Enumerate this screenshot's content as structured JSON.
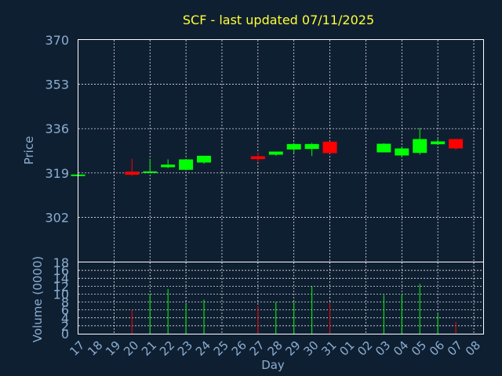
{
  "chart_data": [
    {
      "type": "candlestick",
      "title": "SCF - last updated 07/11/2025",
      "ylabel": "Price",
      "yticks": [
        "370",
        "353",
        "336",
        "319",
        "302"
      ],
      "ylim": [
        285,
        370
      ],
      "grid": true,
      "colors": {
        "up": "#00ff00",
        "down": "#ff0000",
        "background": "#0f1f32",
        "text": "#8aaed0",
        "title": "#ffff33"
      },
      "categories": [
        "17",
        "18",
        "19",
        "20",
        "21",
        "22",
        "23",
        "24",
        "25",
        "26",
        "27",
        "28",
        "29",
        "30",
        "31",
        "01",
        "02",
        "03",
        "04",
        "05",
        "06",
        "07",
        "08"
      ],
      "candles": [
        {
          "x": "17",
          "open": 318.3,
          "high": 318.5,
          "low": 318.1,
          "close": 318.4
        },
        {
          "x": "20",
          "open": 319.5,
          "high": 324.4,
          "low": 318.0,
          "close": 318.3
        },
        {
          "x": "21",
          "open": 319.3,
          "high": 324.4,
          "low": 319.0,
          "close": 319.6
        },
        {
          "x": "22",
          "open": 321.2,
          "high": 324.2,
          "low": 320.8,
          "close": 322.2
        },
        {
          "x": "23",
          "open": 320.2,
          "high": 324.2,
          "low": 320.0,
          "close": 324.2
        },
        {
          "x": "24",
          "open": 323.0,
          "high": 325.6,
          "low": 322.5,
          "close": 325.6
        },
        {
          "x": "27",
          "open": 325.4,
          "high": 326.8,
          "low": 323.3,
          "close": 324.3
        },
        {
          "x": "28",
          "open": 326.0,
          "high": 327.2,
          "low": 325.6,
          "close": 327.2
        },
        {
          "x": "29",
          "open": 328.0,
          "high": 330.5,
          "low": 326.7,
          "close": 330.1
        },
        {
          "x": "30",
          "open": 328.2,
          "high": 330.5,
          "low": 325.5,
          "close": 330.1
        },
        {
          "x": "31",
          "open": 331.0,
          "high": 331.2,
          "low": 326.4,
          "close": 326.6
        },
        {
          "x": "03",
          "open": 326.9,
          "high": 330.4,
          "low": 326.9,
          "close": 330.2
        },
        {
          "x": "04",
          "open": 325.7,
          "high": 328.8,
          "low": 325.0,
          "close": 328.4
        },
        {
          "x": "05",
          "open": 326.7,
          "high": 336.3,
          "low": 326.0,
          "close": 332.0
        },
        {
          "x": "06",
          "open": 330.0,
          "high": 332.1,
          "low": 329.9,
          "close": 331.1
        },
        {
          "x": "07",
          "open": 332.0,
          "high": 332.0,
          "low": 327.9,
          "close": 328.4
        }
      ]
    },
    {
      "type": "bar",
      "ylabel": "Volume (0000)",
      "xlabel": "Day",
      "yticks": [
        "18",
        "16",
        "14",
        "12",
        "10",
        "8",
        "6",
        "4",
        "2",
        "0"
      ],
      "ylim": [
        0,
        18
      ],
      "grid": true,
      "categories": [
        "17",
        "18",
        "19",
        "20",
        "21",
        "22",
        "23",
        "24",
        "25",
        "26",
        "27",
        "28",
        "29",
        "30",
        "31",
        "01",
        "02",
        "03",
        "04",
        "05",
        "06",
        "07",
        "08"
      ],
      "bars": [
        {
          "x": "20",
          "value": 6.0,
          "direction": "down"
        },
        {
          "x": "21",
          "value": 10.0,
          "direction": "up"
        },
        {
          "x": "22",
          "value": 11.3,
          "direction": "up"
        },
        {
          "x": "23",
          "value": 7.4,
          "direction": "up"
        },
        {
          "x": "24",
          "value": 8.6,
          "direction": "up"
        },
        {
          "x": "27",
          "value": 7.0,
          "direction": "down"
        },
        {
          "x": "28",
          "value": 8.0,
          "direction": "up"
        },
        {
          "x": "29",
          "value": 8.0,
          "direction": "up"
        },
        {
          "x": "30",
          "value": 12.0,
          "direction": "up"
        },
        {
          "x": "31",
          "value": 7.8,
          "direction": "down"
        },
        {
          "x": "03",
          "value": 9.8,
          "direction": "up"
        },
        {
          "x": "04",
          "value": 10.0,
          "direction": "up"
        },
        {
          "x": "05",
          "value": 12.6,
          "direction": "up"
        },
        {
          "x": "06",
          "value": 5.1,
          "direction": "up"
        },
        {
          "x": "07",
          "value": 3.0,
          "direction": "down"
        }
      ]
    }
  ]
}
